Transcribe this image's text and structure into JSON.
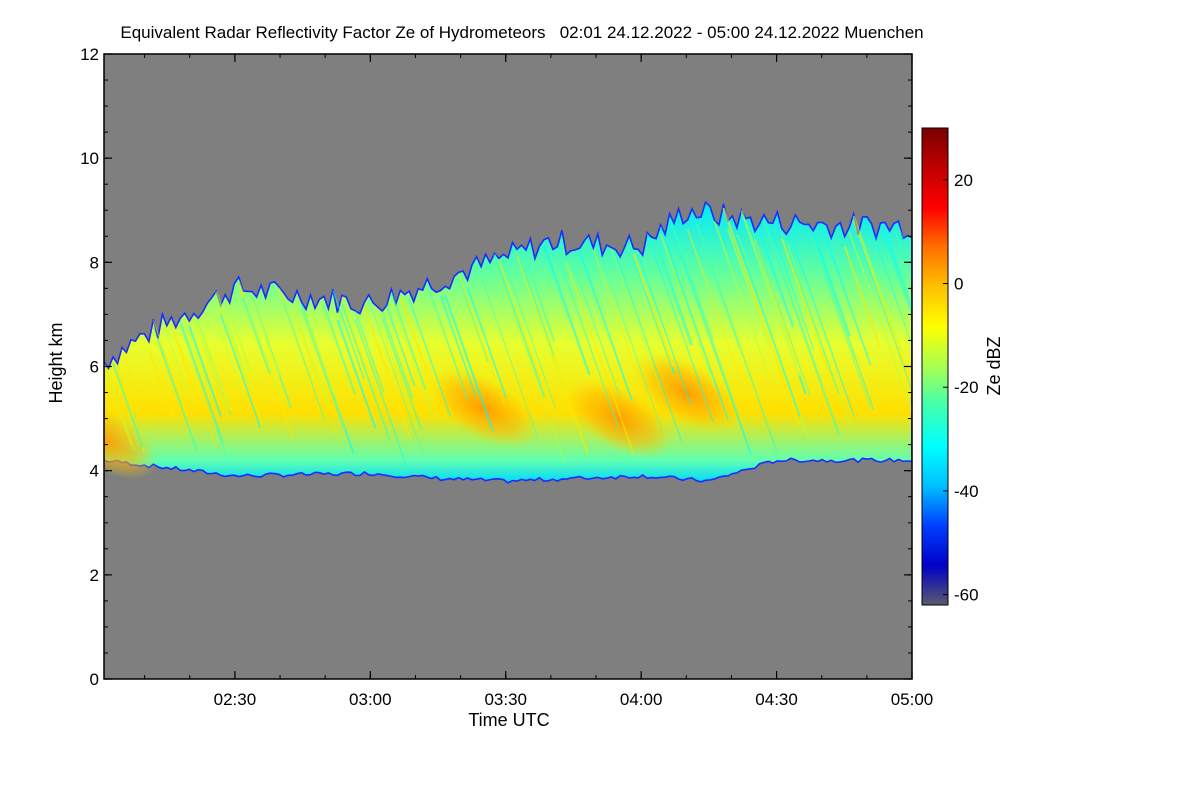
{
  "chart_data": {
    "type": "heatmap",
    "title": "Equivalent Radar Reflectivity Factor Ze of Hydrometeors   02:01 24.12.2022 - 05:00 24.12.2022 Muenchen",
    "xlabel": "Time UTC",
    "ylabel": "Height km",
    "colorbar_label": "Ze dBZ",
    "x_range": [
      "02:01",
      "05:00"
    ],
    "y_range": [
      0,
      12
    ],
    "x_ticks": [
      "02:30",
      "03:00",
      "03:30",
      "04:00",
      "04:30",
      "05:00"
    ],
    "y_ticks": [
      0,
      2,
      4,
      6,
      8,
      10,
      12
    ],
    "colorbar_range": [
      -62,
      30
    ],
    "colorbar_ticks": [
      20,
      0,
      -20,
      -40,
      -60
    ],
    "background_color": "#7f7f7f",
    "colormap": [
      "#5a5a6e",
      "#0000c8",
      "#0040ff",
      "#00c0ff",
      "#00ffff",
      "#40ffb0",
      "#a8ff50",
      "#ffff00",
      "#ffc000",
      "#ff7000",
      "#ff0000",
      "#c00000",
      "#7a0000"
    ],
    "cloud_base_km": [
      {
        "time": "02:01",
        "km": 4.2
      },
      {
        "time": "02:30",
        "km": 3.9
      },
      {
        "time": "03:00",
        "km": 3.95
      },
      {
        "time": "03:15",
        "km": 3.85
      },
      {
        "time": "03:30",
        "km": 3.8
      },
      {
        "time": "04:00",
        "km": 3.9
      },
      {
        "time": "04:15",
        "km": 3.8
      },
      {
        "time": "04:30",
        "km": 4.2
      },
      {
        "time": "05:00",
        "km": 4.2
      }
    ],
    "cloud_top_km": [
      {
        "time": "02:01",
        "km": 6.1
      },
      {
        "time": "02:10",
        "km": 6.6
      },
      {
        "time": "02:30",
        "km": 7.5
      },
      {
        "time": "03:00",
        "km": 7.2
      },
      {
        "time": "03:20",
        "km": 7.8
      },
      {
        "time": "03:40",
        "km": 8.4
      },
      {
        "time": "04:00",
        "km": 8.3
      },
      {
        "time": "04:10",
        "km": 9.0
      },
      {
        "time": "04:25",
        "km": 8.8
      },
      {
        "time": "04:45",
        "km": 8.7
      },
      {
        "time": "05:00",
        "km": 8.7
      }
    ],
    "max_reflectivity_regions": [
      {
        "time": "02:01",
        "km": 4.6,
        "dbz": -2
      },
      {
        "time": "03:25",
        "km": 5.2,
        "dbz": 3
      },
      {
        "time": "03:55",
        "km": 5.0,
        "dbz": 5
      },
      {
        "time": "04:10",
        "km": 5.5,
        "dbz": 3
      }
    ]
  }
}
